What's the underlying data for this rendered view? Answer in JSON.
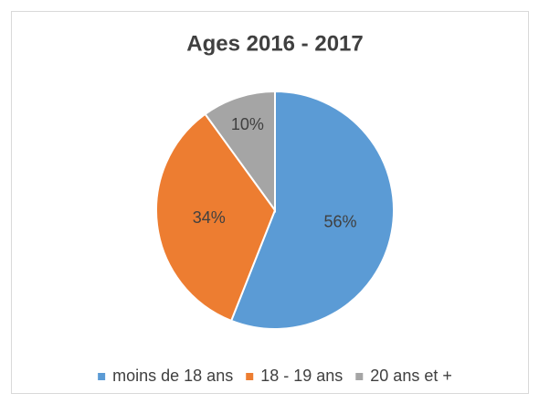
{
  "chart_data": {
    "type": "pie",
    "title": "Ages 2016 - 2017",
    "categories": [
      "moins de 18 ans",
      "18 - 19 ans",
      "20 ans et +"
    ],
    "values": [
      56,
      34,
      10
    ],
    "value_labels": [
      "56%",
      "34%",
      "10%"
    ],
    "colors": [
      "#5b9bd5",
      "#ed7d31",
      "#a5a5a5"
    ],
    "legend": "bottom"
  }
}
